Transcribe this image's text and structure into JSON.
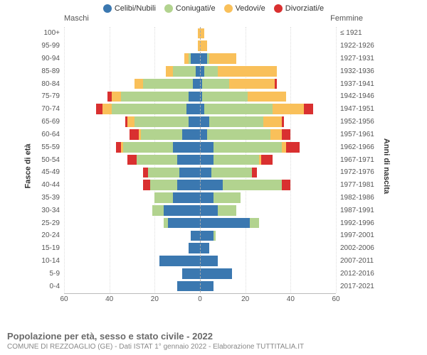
{
  "legend": [
    {
      "label": "Celibi/Nubili",
      "color": "#3b78b0"
    },
    {
      "label": "Coniugati/e",
      "color": "#b2d38f"
    },
    {
      "label": "Vedovi/e",
      "color": "#f9c05a"
    },
    {
      "label": "Divorziati/e",
      "color": "#d93030"
    }
  ],
  "header": {
    "left": "Maschi",
    "right": "Femmine"
  },
  "axes": {
    "left_title": "Fasce di età",
    "right_title": "Anni di nascita",
    "xmax": 60,
    "xticks": [
      60,
      40,
      20,
      0,
      20,
      40,
      60
    ]
  },
  "rows": [
    {
      "age": "100+",
      "birth": "≤ 1921",
      "m": [
        0,
        0,
        1,
        0
      ],
      "f": [
        0,
        0,
        2,
        0
      ]
    },
    {
      "age": "95-99",
      "birth": "1922-1926",
      "m": [
        0,
        0,
        1,
        0
      ],
      "f": [
        0,
        0,
        3,
        0
      ]
    },
    {
      "age": "90-94",
      "birth": "1927-1931",
      "m": [
        4,
        1,
        2,
        0
      ],
      "f": [
        3,
        1,
        12,
        0
      ]
    },
    {
      "age": "85-89",
      "birth": "1932-1936",
      "m": [
        2,
        10,
        3,
        0
      ],
      "f": [
        2,
        6,
        26,
        0
      ]
    },
    {
      "age": "80-84",
      "birth": "1937-1941",
      "m": [
        3,
        22,
        4,
        0
      ],
      "f": [
        1,
        12,
        20,
        1
      ]
    },
    {
      "age": "75-79",
      "birth": "1942-1946",
      "m": [
        5,
        30,
        4,
        2
      ],
      "f": [
        1,
        20,
        17,
        0
      ]
    },
    {
      "age": "70-74",
      "birth": "1947-1951",
      "m": [
        6,
        33,
        4,
        3
      ],
      "f": [
        2,
        30,
        14,
        4
      ]
    },
    {
      "age": "65-69",
      "birth": "1952-1956",
      "m": [
        5,
        24,
        3,
        1
      ],
      "f": [
        4,
        24,
        8,
        1
      ]
    },
    {
      "age": "60-64",
      "birth": "1957-1961",
      "m": [
        8,
        18,
        1,
        4
      ],
      "f": [
        3,
        28,
        5,
        4
      ]
    },
    {
      "age": "55-59",
      "birth": "1962-1966",
      "m": [
        12,
        22,
        1,
        2
      ],
      "f": [
        6,
        30,
        2,
        6
      ]
    },
    {
      "age": "50-54",
      "birth": "1967-1971",
      "m": [
        10,
        18,
        0,
        4
      ],
      "f": [
        6,
        20,
        1,
        5
      ]
    },
    {
      "age": "45-49",
      "birth": "1972-1976",
      "m": [
        9,
        14,
        0,
        2
      ],
      "f": [
        5,
        18,
        0,
        2
      ]
    },
    {
      "age": "40-44",
      "birth": "1977-1981",
      "m": [
        10,
        12,
        0,
        3
      ],
      "f": [
        10,
        26,
        0,
        4
      ]
    },
    {
      "age": "35-39",
      "birth": "1982-1986",
      "m": [
        12,
        8,
        0,
        0
      ],
      "f": [
        6,
        12,
        0,
        0
      ]
    },
    {
      "age": "30-34",
      "birth": "1987-1991",
      "m": [
        16,
        5,
        0,
        0
      ],
      "f": [
        8,
        8,
        0,
        0
      ]
    },
    {
      "age": "25-29",
      "birth": "1992-1996",
      "m": [
        14,
        2,
        0,
        0
      ],
      "f": [
        22,
        4,
        0,
        0
      ]
    },
    {
      "age": "20-24",
      "birth": "1997-2001",
      "m": [
        4,
        0,
        0,
        0
      ],
      "f": [
        6,
        1,
        0,
        0
      ]
    },
    {
      "age": "15-19",
      "birth": "2002-2006",
      "m": [
        5,
        0,
        0,
        0
      ],
      "f": [
        4,
        0,
        0,
        0
      ]
    },
    {
      "age": "10-14",
      "birth": "2007-2011",
      "m": [
        18,
        0,
        0,
        0
      ],
      "f": [
        8,
        0,
        0,
        0
      ]
    },
    {
      "age": "5-9",
      "birth": "2012-2016",
      "m": [
        8,
        0,
        0,
        0
      ],
      "f": [
        14,
        0,
        0,
        0
      ]
    },
    {
      "age": "0-4",
      "birth": "2017-2021",
      "m": [
        10,
        0,
        0,
        0
      ],
      "f": [
        6,
        0,
        0,
        0
      ]
    }
  ],
  "footer": {
    "title": "Popolazione per età, sesso e stato civile - 2022",
    "subtitle": "COMUNE DI REZZOAGLIO (GE) - Dati ISTAT 1° gennaio 2022 - Elaborazione TUTTITALIA.IT"
  },
  "colors": {
    "background": "#ffffff",
    "grid": "#dddddd",
    "axis": "#bbbbbb",
    "text": "#555555"
  }
}
